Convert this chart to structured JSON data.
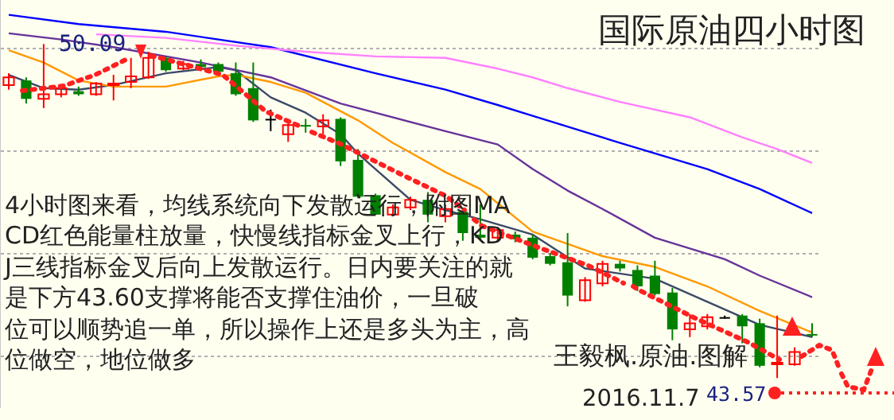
{
  "chart_data": {
    "type": "candlestick",
    "title": "国际原油四小时图",
    "categories": [
      null,
      null,
      null,
      null,
      null,
      null,
      null,
      null,
      null,
      null,
      null,
      null,
      null,
      null,
      null,
      null,
      null,
      null,
      null,
      null,
      null,
      null,
      null,
      null,
      null,
      null,
      null,
      null,
      null,
      null,
      null,
      null,
      null,
      null,
      null,
      null,
      null,
      null,
      null,
      null,
      null,
      null,
      null,
      null,
      null,
      null,
      null
    ],
    "ohlc": [
      [
        49.29,
        49.52,
        49.2,
        49.44
      ],
      [
        49.38,
        49.44,
        48.93,
        49.02
      ],
      [
        49.02,
        50.09,
        48.84,
        49.11
      ],
      [
        49.11,
        49.29,
        49.05,
        49.23
      ],
      [
        49.17,
        49.26,
        49.08,
        49.11
      ],
      [
        49.11,
        49.35,
        49.08,
        49.32
      ],
      [
        49.29,
        49.49,
        48.99,
        49.32
      ],
      [
        49.35,
        49.82,
        49.23,
        49.46
      ],
      [
        49.44,
        49.94,
        49.41,
        49.82
      ],
      [
        49.82,
        49.85,
        49.55,
        49.58
      ],
      [
        49.61,
        49.76,
        49.58,
        49.7
      ],
      [
        49.7,
        49.79,
        49.61,
        49.64
      ],
      [
        49.7,
        49.73,
        49.49,
        49.55
      ],
      [
        49.52,
        49.73,
        49.08,
        49.11
      ],
      [
        49.23,
        49.73,
        48.57,
        48.6
      ],
      [
        48.63,
        48.81,
        48.39,
        48.63
      ],
      [
        48.33,
        48.54,
        48.18,
        48.51
      ],
      [
        48.51,
        48.63,
        48.36,
        48.48
      ],
      [
        48.48,
        48.72,
        48.33,
        48.6
      ],
      [
        48.63,
        48.66,
        47.71,
        47.8
      ],
      [
        47.83,
        48.04,
        47.08,
        47.11
      ],
      [
        47.14,
        47.17,
        46.76,
        46.76
      ],
      [
        46.76,
        46.96,
        46.73,
        46.9
      ],
      [
        46.9,
        47.11,
        46.85,
        47.05
      ],
      [
        47.05,
        47.2,
        46.61,
        46.76
      ],
      [
        46.73,
        46.96,
        46.61,
        46.87
      ],
      [
        46.82,
        46.9,
        46.25,
        46.4
      ],
      [
        46.37,
        46.96,
        46.25,
        46.31
      ],
      [
        46.31,
        46.52,
        46.25,
        46.46
      ],
      [
        46.37,
        46.43,
        46.22,
        46.28
      ],
      [
        46.31,
        46.37,
        45.89,
        45.92
      ],
      [
        45.95,
        46.01,
        45.77,
        45.8
      ],
      [
        45.83,
        46.4,
        44.97,
        45.18
      ],
      [
        45.09,
        45.54,
        45.06,
        45.48
      ],
      [
        45.42,
        45.86,
        45.36,
        45.8
      ],
      [
        45.8,
        45.86,
        45.65,
        45.71
      ],
      [
        45.68,
        45.77,
        45.27,
        45.36
      ],
      [
        45.57,
        45.86,
        45.18,
        45.21
      ],
      [
        45.24,
        45.33,
        44.31,
        44.52
      ],
      [
        44.52,
        44.82,
        44.37,
        44.64
      ],
      [
        44.58,
        44.82,
        44.52,
        44.76
      ],
      [
        44.76,
        44.79,
        44.73,
        44.76
      ],
      [
        44.79,
        44.82,
        44.25,
        44.58
      ],
      [
        44.64,
        44.73,
        43.78,
        43.81
      ],
      [
        43.84,
        44.79,
        43.57,
        43.87
      ],
      [
        43.84,
        44.17,
        43.81,
        44.08
      ],
      [
        44.43,
        44.64,
        44.37,
        44.4
      ]
    ],
    "colors": [
      "#ff0000",
      "#008000",
      "#ff0000",
      "#ff0000",
      "#008000",
      "#ff0000",
      "#ff0000",
      "#ff0000",
      "#ff0000",
      "#008000",
      "#ff0000",
      "#008000",
      "#008000",
      "#008000",
      "#008000",
      "#000000",
      "#ff0000",
      "#008000",
      "#ff0000",
      "#008000",
      "#008000",
      "#008000",
      "#ff0000",
      "#ff0000",
      "#008000",
      "#ff0000",
      "#008000",
      "#008000",
      "#ff0000",
      "#008000",
      "#008000",
      "#008000",
      "#008000",
      "#ff0000",
      "#ff0000",
      "#008000",
      "#008000",
      "#008000",
      "#008000",
      "#ff0000",
      "#ff0000",
      "#000000",
      "#008000",
      "#008000",
      "#ff0000",
      "#ff0000",
      "#008000"
    ],
    "series": [
      {
        "type": "line",
        "color": "#ff80ff",
        "values": [
          null,
          null,
          null,
          null,
          null,
          50.28,
          null,
          null,
          null,
          50.21,
          null,
          null,
          null,
          50.06,
          null,
          null,
          null,
          49.94,
          null,
          null,
          null,
          49.85,
          null,
          null,
          null,
          49.82,
          null,
          null,
          49.61,
          null,
          49.44,
          null,
          49.23,
          null,
          null,
          48.96,
          null,
          null,
          null,
          48.66,
          null,
          null,
          48.27,
          null,
          48.04,
          null,
          47.77
        ]
      },
      {
        "type": "line",
        "color": "#0000ff",
        "values": [
          50.66,
          null,
          null,
          null,
          50.48,
          null,
          null,
          null,
          null,
          50.33,
          null,
          null,
          null,
          null,
          null,
          50.03,
          null,
          null,
          null,
          null,
          null,
          49.52,
          null,
          null,
          null,
          49.2,
          null,
          null,
          48.9,
          null,
          48.69,
          null,
          null,
          null,
          null,
          48.16,
          null,
          null,
          null,
          null,
          47.65,
          null,
          null,
          47.26,
          null,
          null,
          46.79
        ]
      },
      {
        "type": "line",
        "color": "#663399",
        "values": [
          50.3,
          null,
          null,
          50.18,
          null,
          null,
          50.03,
          null,
          null,
          null,
          null,
          49.73,
          null,
          null,
          null,
          49.44,
          null,
          null,
          null,
          48.93,
          null,
          null,
          null,
          null,
          null,
          48.39,
          null,
          null,
          48.13,
          null,
          47.65,
          null,
          47.23,
          null,
          46.87,
          null,
          null,
          46.31,
          null,
          null,
          null,
          45.89,
          null,
          45.57,
          null,
          null,
          45.15
        ]
      },
      {
        "type": "line",
        "color": "#ff9900",
        "values": [
          49.97,
          null,
          49.73,
          null,
          49.38,
          null,
          49.26,
          null,
          null,
          49.26,
          null,
          null,
          49.46,
          49.49,
          null,
          49.35,
          null,
          49.14,
          null,
          null,
          48.6,
          null,
          48.16,
          null,
          null,
          47.59,
          null,
          47.26,
          null,
          null,
          46.43,
          null,
          null,
          null,
          45.95,
          null,
          null,
          45.74,
          null,
          null,
          45.36,
          null,
          null,
          44.88,
          null,
          null,
          44.46
        ]
      },
      {
        "type": "line",
        "color": "#3a4a66",
        "values": [
          49.49,
          null,
          49.23,
          null,
          49.2,
          null,
          49.29,
          null,
          null,
          49.52,
          null,
          null,
          49.64,
          49.58,
          null,
          49.05,
          null,
          48.75,
          null,
          48.33,
          47.95,
          47.65,
          null,
          47.05,
          null,
          46.85,
          null,
          46.67,
          null,
          null,
          46.37,
          null,
          null,
          45.71,
          null,
          null,
          null,
          45.51,
          null,
          null,
          45.06,
          null,
          null,
          44.61,
          null,
          null,
          44.37
        ]
      }
    ],
    "ylim": [
      43.0,
      50.95
    ],
    "yticks": [
      {
        "value": 44,
        "label": null
      },
      {
        "value": 46,
        "label": null
      },
      {
        "value": 48,
        "label": null
      },
      {
        "value": 50,
        "label": null
      }
    ],
    "grid": "y",
    "legend": false,
    "marker": "none",
    "annotations": [
      "4小时图来看，均线系统向下发散运行，附图MACD红色能量柱放量，快慢线指标金叉上行，KDJ三线指标金叉后向上发散运行。日内要关注的就是下方43.60支撑将能否支撑住油价，一旦破位可以顺势追一单，所以操作上还是多头为主，高位做空，地位做多",
      "王毅枫.原油.图解",
      "2016.11.7",
      "50.09",
      "43.57"
    ]
  }
}
